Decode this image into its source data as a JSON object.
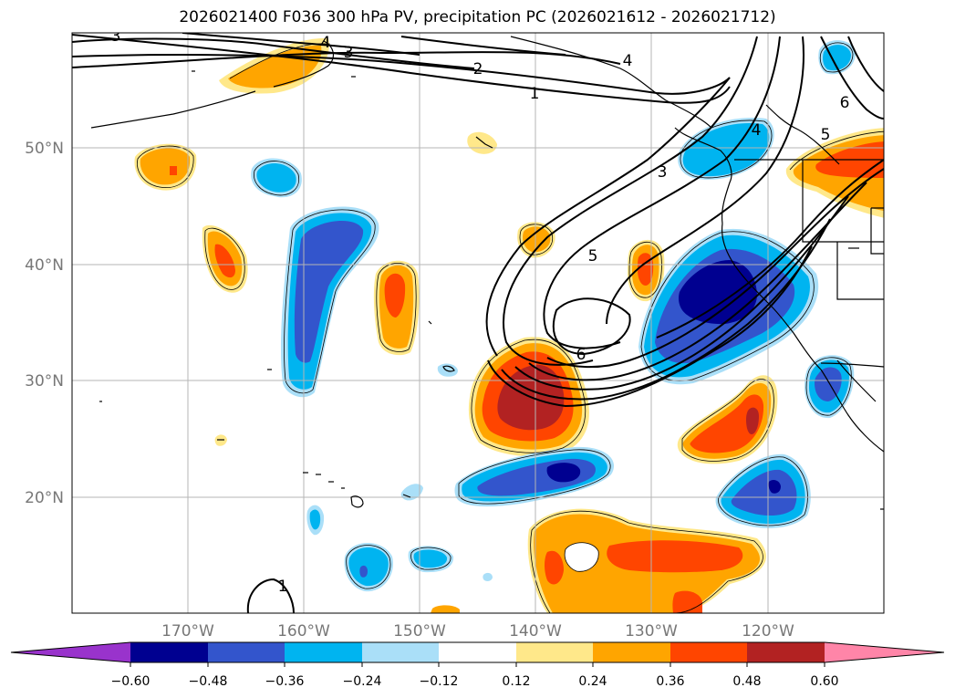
{
  "title": "2026021400 F036 300 hPa PV, precipitation PC (2026021612 - 2026021712)",
  "map": {
    "lon_labels": [
      "170°W",
      "160°W",
      "150°W",
      "140°W",
      "130°W",
      "120°W"
    ],
    "lat_labels": [
      "50°N",
      "40°N",
      "30°N",
      "20°N"
    ],
    "pv_contour_labels": [
      "1",
      "2",
      "3",
      "4",
      "3",
      "4",
      "5",
      "6",
      "3",
      "4",
      "5",
      "6",
      "1"
    ]
  },
  "colorbar": {
    "ticks": [
      "−0.60",
      "−0.48",
      "−0.36",
      "−0.24",
      "−0.12",
      "0.12",
      "0.24",
      "0.36",
      "0.48",
      "0.60"
    ],
    "colors": [
      "#9933cc",
      "#000090",
      "#3355cc",
      "#00b4f0",
      "#aadff8",
      "#ffffff",
      "#ffe88a",
      "#ffa500",
      "#ff4500",
      "#b22222",
      "#ff85a8"
    ]
  }
}
